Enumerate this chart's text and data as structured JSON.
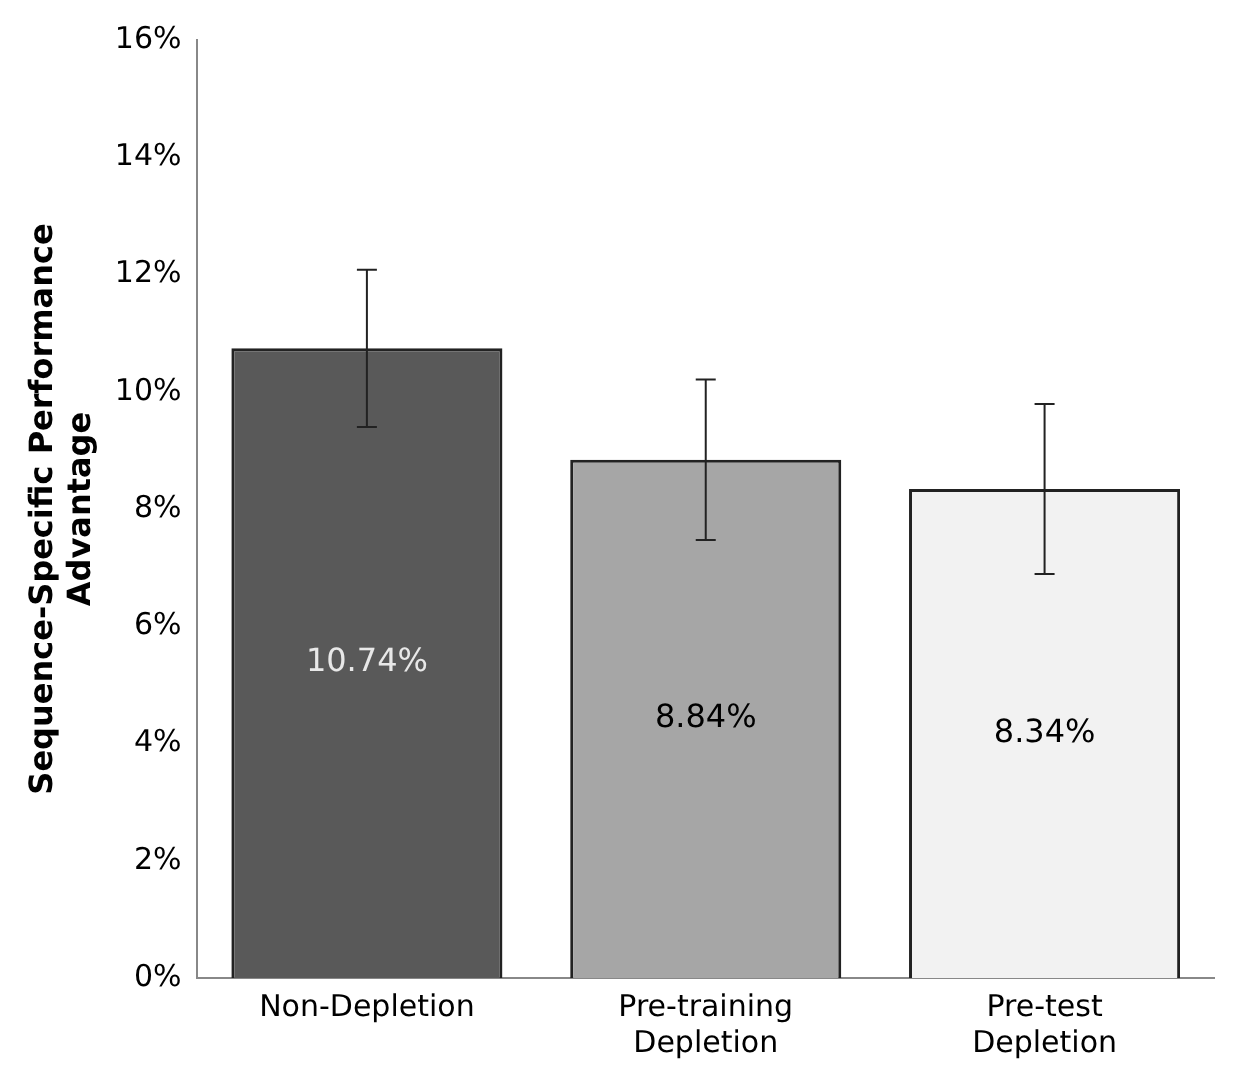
{
  "chart_data": {
    "type": "bar",
    "ylabel": "Sequence-Specific Performance Advantage",
    "categories": [
      "Non-Depletion",
      "Pre-training Depletion",
      "Pre-test Depletion"
    ],
    "values": [
      10.74,
      8.84,
      8.34
    ],
    "colors": [
      "#595959",
      "#a6a6a6",
      "#f2f2f2"
    ],
    "errors": [
      1.34,
      1.37,
      1.45
    ],
    "value_labels": [
      "10.74%",
      "8.84%",
      "8.34%"
    ],
    "ylim": [
      0,
      16
    ],
    "yticks": [
      {
        "value": 0,
        "label": "0%"
      },
      {
        "value": 2,
        "label": "2%"
      },
      {
        "value": 4,
        "label": "4%"
      },
      {
        "value": 6,
        "label": "6%"
      },
      {
        "value": 8,
        "label": "8%"
      },
      {
        "value": 10,
        "label": "10%"
      },
      {
        "value": 12,
        "label": "12%"
      },
      {
        "value": 14,
        "label": "14%"
      },
      {
        "value": 16,
        "label": "16%"
      }
    ],
    "grid": false,
    "legend": false
  }
}
